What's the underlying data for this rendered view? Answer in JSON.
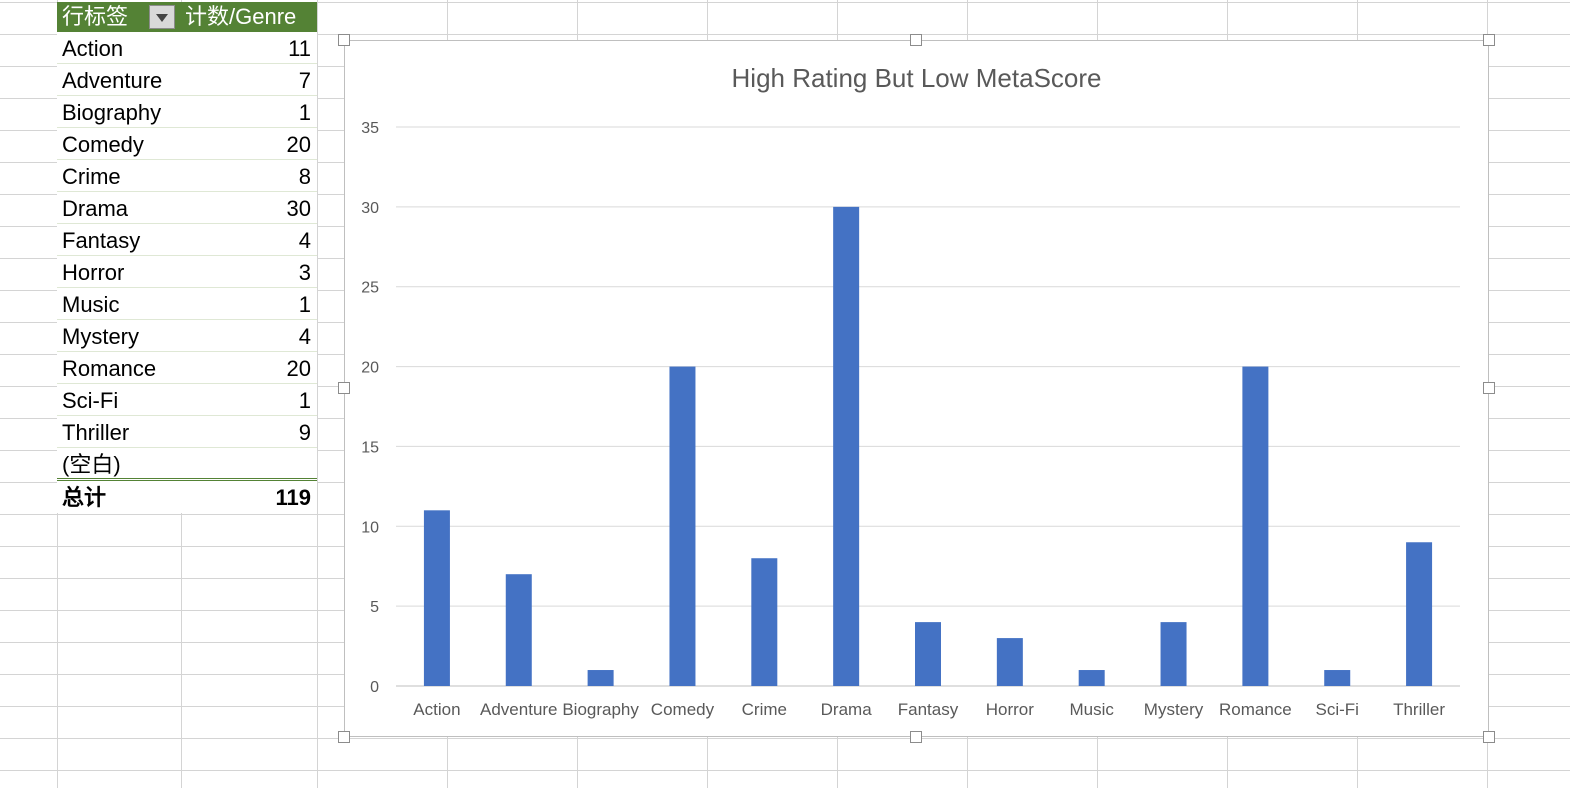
{
  "pivot": {
    "header_label": "行标签",
    "header_value": "计数/Genre",
    "rows": [
      {
        "label": "Action",
        "value": "11"
      },
      {
        "label": "Adventure",
        "value": "7"
      },
      {
        "label": "Biography",
        "value": "1"
      },
      {
        "label": "Comedy",
        "value": "20"
      },
      {
        "label": "Crime",
        "value": "8"
      },
      {
        "label": "Drama",
        "value": "30"
      },
      {
        "label": "Fantasy",
        "value": "4"
      },
      {
        "label": "Horror",
        "value": "3"
      },
      {
        "label": "Music",
        "value": "1"
      },
      {
        "label": "Mystery",
        "value": "4"
      },
      {
        "label": "Romance",
        "value": "20"
      },
      {
        "label": "Sci-Fi",
        "value": "1"
      },
      {
        "label": "Thriller",
        "value": "9"
      }
    ],
    "blank_label": "(空白)",
    "total_label": "总计",
    "total_value": "119",
    "colors": {
      "header_bg": "#548235",
      "header_text": "#ffffff"
    }
  },
  "chart_data": {
    "type": "bar",
    "title": "High Rating But Low MetaScore",
    "categories": [
      "Action",
      "Adventure",
      "Biography",
      "Comedy",
      "Crime",
      "Drama",
      "Fantasy",
      "Horror",
      "Music",
      "Mystery",
      "Romance",
      "Sci-Fi",
      "Thriller"
    ],
    "values": [
      11,
      7,
      1,
      20,
      8,
      30,
      4,
      3,
      1,
      4,
      20,
      1,
      9
    ],
    "ylim": [
      0,
      35
    ],
    "yticks": [
      0,
      5,
      10,
      15,
      20,
      25,
      30,
      35
    ],
    "grid": true,
    "bar_color": "#4472c4",
    "xlabel": "",
    "ylabel": ""
  }
}
